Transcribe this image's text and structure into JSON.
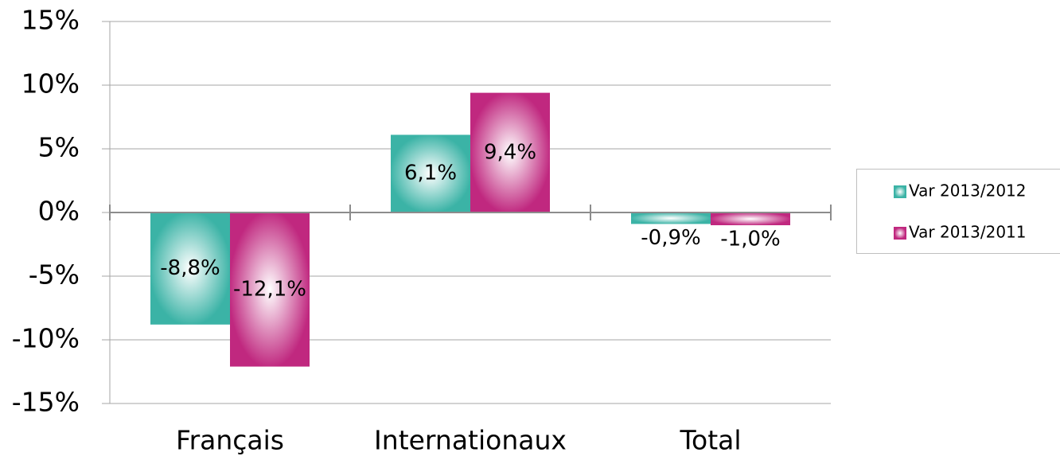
{
  "chart_data": {
    "type": "bar",
    "categories": [
      "Français",
      "Internationaux",
      "Total"
    ],
    "series": [
      {
        "name": "Var 2013/2012",
        "color": "#3bb3a6",
        "values": [
          -8.8,
          6.1,
          -0.9
        ],
        "value_labels": [
          "-8,8%",
          "6,1%",
          "-0,9%"
        ]
      },
      {
        "name": "Var 2013/2011",
        "color": "#c0287f",
        "values": [
          -12.1,
          9.4,
          -1.0
        ],
        "value_labels": [
          "-12,1%",
          "9,4%",
          "-1,0%"
        ]
      }
    ],
    "ylim": [
      -15,
      15
    ],
    "yticks": [
      {
        "value": -15,
        "label": "-15%"
      },
      {
        "value": -10,
        "label": "-10%"
      },
      {
        "value": -5,
        "label": "-5%"
      },
      {
        "value": 0,
        "label": "0%"
      },
      {
        "value": 5,
        "label": "5%"
      },
      {
        "value": 10,
        "label": "10%"
      },
      {
        "value": 15,
        "label": "15%"
      }
    ],
    "grid": true,
    "legend": "right"
  }
}
